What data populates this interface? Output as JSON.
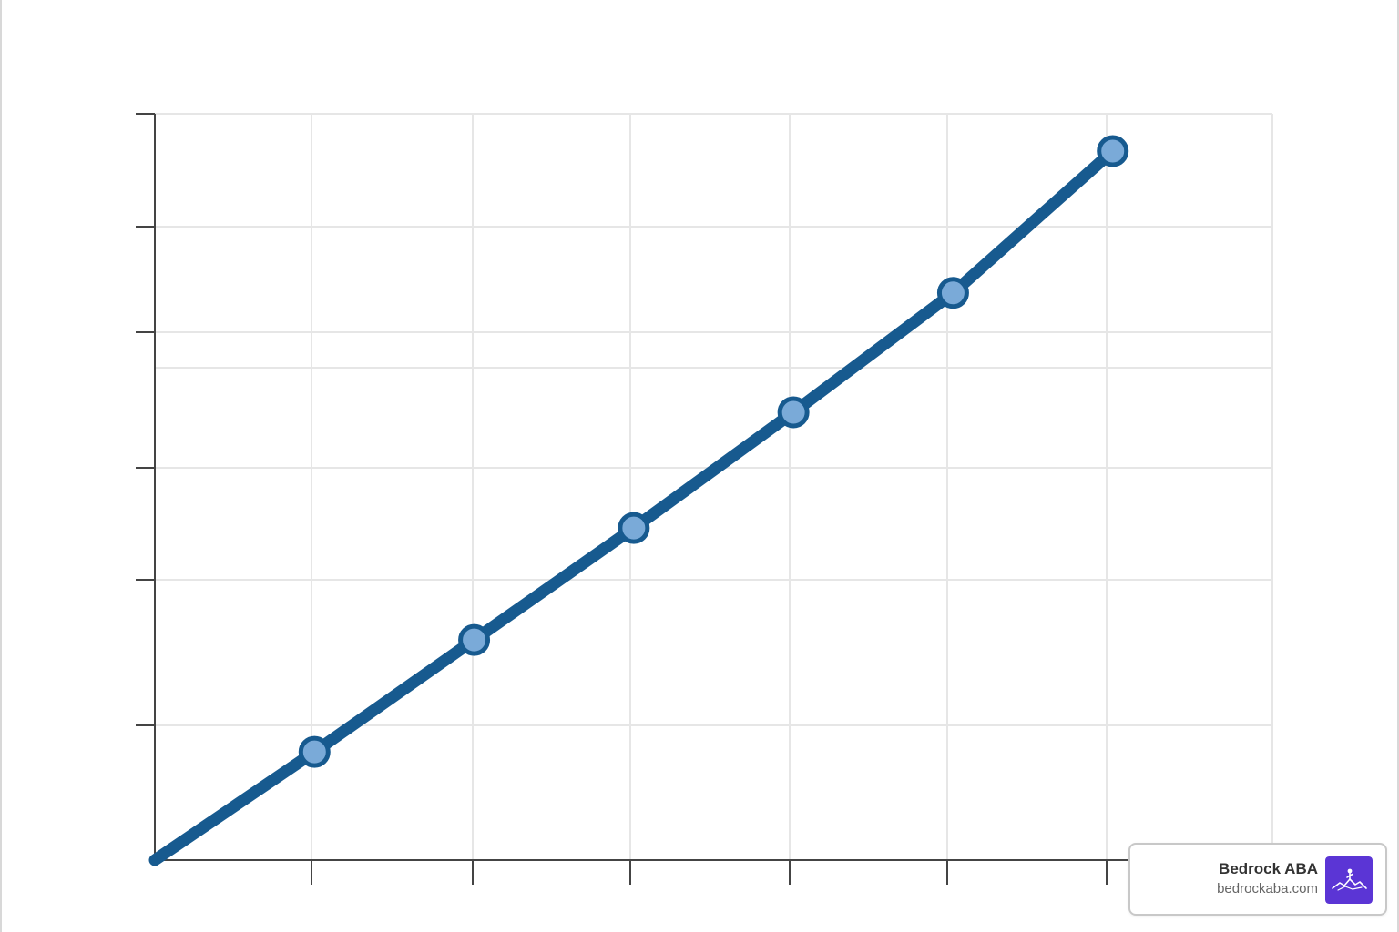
{
  "chart_data": {
    "type": "line",
    "title": "",
    "xlabel": "",
    "ylabel": "",
    "x": [
      0,
      1,
      2,
      3,
      4,
      5,
      6
    ],
    "series": [
      {
        "values": [
          0,
          1.45,
          2.95,
          4.45,
          6.0,
          7.6,
          9.5
        ]
      }
    ],
    "xlim": [
      0,
      7
    ],
    "ylim": [
      0,
      10
    ],
    "grid": true,
    "colors": {
      "line": "#175a8f",
      "marker_fill": "#7aaad8",
      "marker_edge": "#175a8f"
    }
  },
  "watermark": {
    "name": "Bedrock ABA",
    "url": "bedrockaba.com",
    "logo_icon": "mountain-figure-icon",
    "logo_color": "#5b35d5"
  }
}
